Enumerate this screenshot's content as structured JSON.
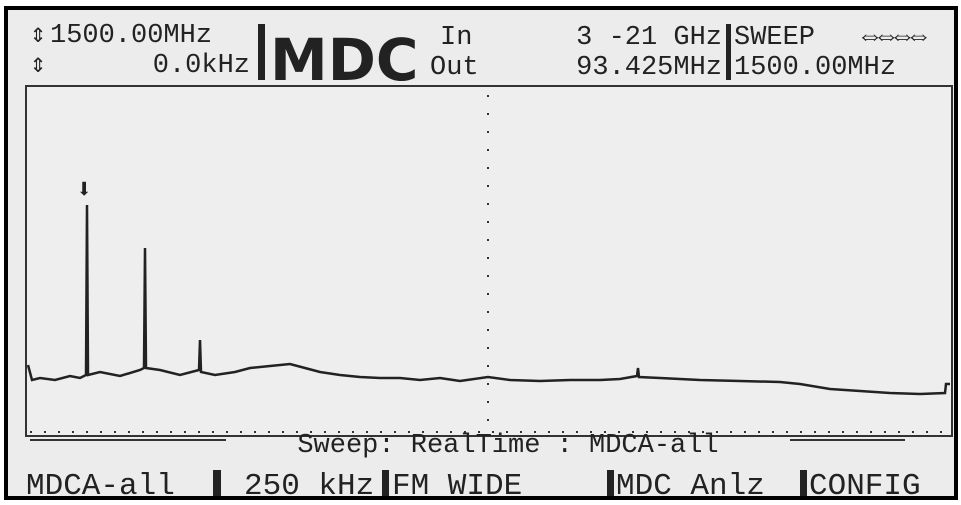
{
  "header": {
    "center_freq": "1500.00MHz",
    "offset": "0.0kHz",
    "title": "MDC",
    "input_label": "In",
    "input_range": "3 -21 GHz",
    "output_label": "Out",
    "output_freq": "93.425MHz",
    "mode": "SWEEP",
    "sweep_freq": "1500.00MHz"
  },
  "status": "Sweep: RealTime : MDCA-all",
  "menu": [
    "MDCA-all",
    "250 kHz",
    "FM WIDE",
    "MDC Anlz",
    "CONFIG"
  ]
}
